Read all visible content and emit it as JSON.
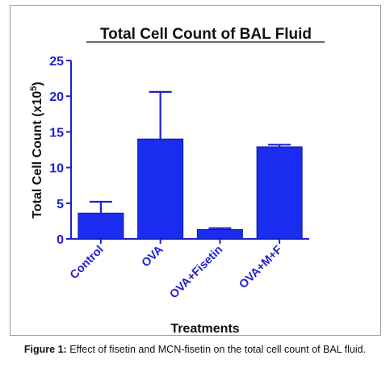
{
  "chart_data": {
    "type": "bar",
    "title": "Total Cell Count of BAL Fluid",
    "xlabel": "Treatments",
    "ylabel_main": "Total Cell  Count (x10",
    "ylabel_sup": "5",
    "ylabel_end": ")",
    "categories": [
      "Control",
      "OVA",
      "OVA+Fisetin",
      "OVA+M+F"
    ],
    "values": [
      3.6,
      14.0,
      1.3,
      12.9
    ],
    "errors": [
      1.6,
      6.6,
      0.2,
      0.3
    ],
    "ylim": [
      0,
      25
    ],
    "yticks": [
      0,
      5,
      10,
      15,
      20,
      25
    ],
    "bar_color": "#1a2cf0",
    "axis_color": "#1f1fd0"
  },
  "caption": {
    "label": "Figure 1:",
    "text": " Effect of fisetin and MCN-fisetin on the total cell count of BAL fluid."
  }
}
